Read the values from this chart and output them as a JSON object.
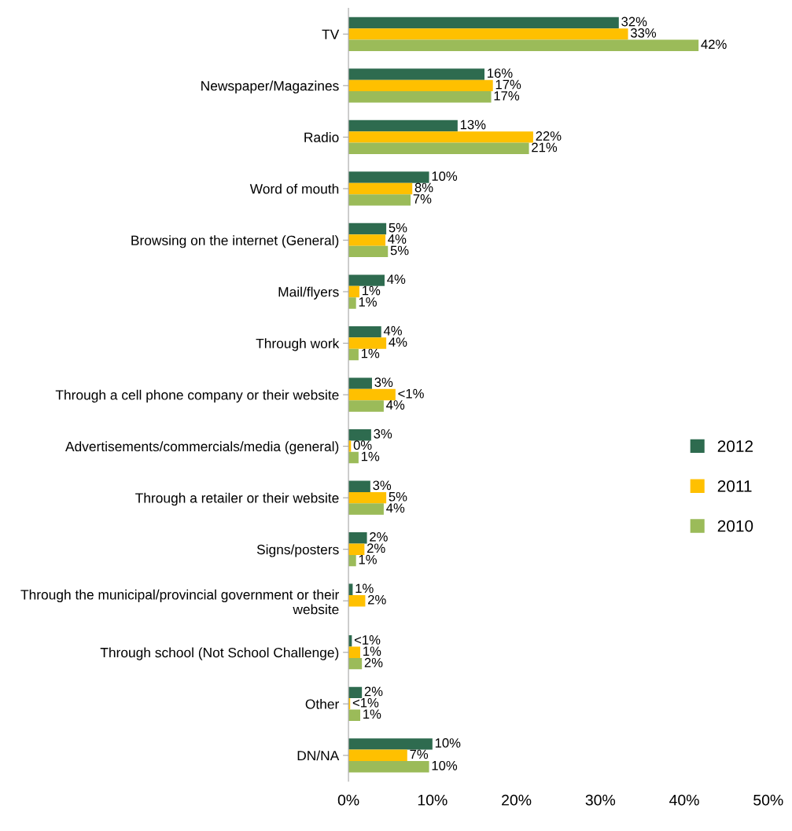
{
  "chart_data": {
    "type": "bar",
    "orientation": "horizontal",
    "categories": [
      "TV",
      "Newspaper/Magazines",
      "Radio",
      "Word of mouth",
      "Browsing on the internet (General)",
      "Mail/flyers",
      "Through work",
      "Through a cell phone company or their website",
      "Advertisements/commercials/media (general)",
      "Through a retailer or their website",
      "Signs/posters",
      "Through the municipal/provincial government or their website",
      "Through school (Not School Challenge)",
      "Other",
      "DN/NA"
    ],
    "series": [
      {
        "name": "2012",
        "color": "#2e6b4f",
        "values": [
          32.2,
          16.2,
          13,
          9.6,
          4.5,
          4.3,
          3.9,
          2.8,
          2.7,
          2.6,
          2.2,
          0.5,
          0.4,
          1.6,
          10
        ],
        "value_labels": [
          "32%",
          "16%",
          "13%",
          "10%",
          "5%",
          "4%",
          "4%",
          "3%",
          "3%",
          "3%",
          "2%",
          "1%",
          "<1%",
          "2%",
          "10%"
        ]
      },
      {
        "name": "2011",
        "color": "#ffc000",
        "values": [
          33.3,
          17.2,
          22,
          7.6,
          4.4,
          1.3,
          4.5,
          5.6,
          0.3,
          4.5,
          1.9,
          2.0,
          1.4,
          0.2,
          7
        ],
        "value_labels": [
          "33%",
          "17%",
          "22%",
          "8%",
          "4%",
          "1%",
          "4%",
          "<1%",
          "0%",
          "5%",
          "2%",
          "2%",
          "1%",
          "<1%",
          "7%"
        ]
      },
      {
        "name": "2010",
        "color": "#9bbb59",
        "values": [
          41.7,
          17,
          21.5,
          7.4,
          4.7,
          0.9,
          1.2,
          4.2,
          1.2,
          4.2,
          0.9,
          null,
          1.6,
          1.4,
          9.6
        ],
        "value_labels": [
          "42%",
          "17%",
          "21%",
          "7%",
          "5%",
          "1%",
          "1%",
          "4%",
          "1%",
          "4%",
          "1%",
          null,
          "2%",
          "1%",
          "10%"
        ]
      }
    ],
    "xlim": [
      0,
      50
    ],
    "xticks": [
      {
        "value": 0,
        "label": "0%"
      },
      {
        "value": 10,
        "label": "10%"
      },
      {
        "value": 20,
        "label": "20%"
      },
      {
        "value": 30,
        "label": "30%"
      },
      {
        "value": 40,
        "label": "40%"
      },
      {
        "value": 50,
        "label": "50%"
      }
    ],
    "grid": false,
    "legend": "right"
  }
}
